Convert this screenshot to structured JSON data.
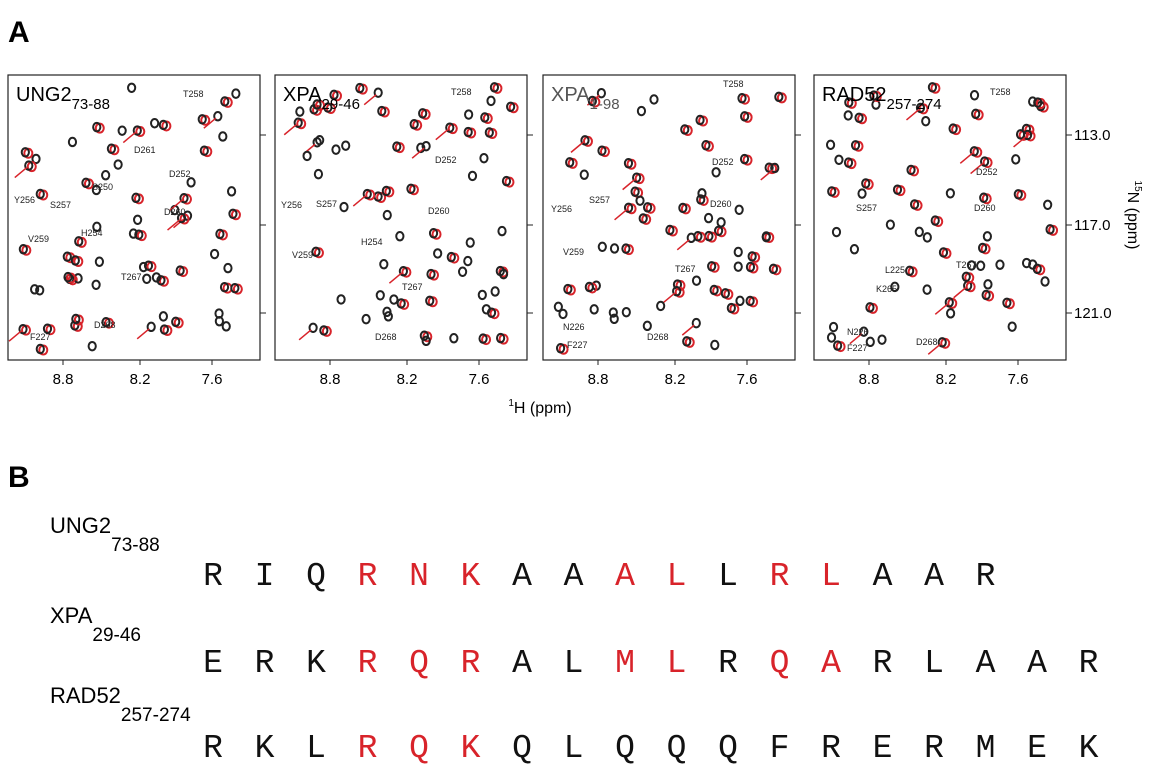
{
  "panel_a": {
    "label": "A",
    "spectra": [
      {
        "name": "UNG2",
        "subscript": "73-88",
        "residues": [
          "T258",
          "D261",
          "D252",
          "S250",
          "Y256",
          "S257",
          "D260",
          "H254",
          "V259",
          "T267",
          "D268",
          "F227"
        ]
      },
      {
        "name": "XPA",
        "subscript": "29-46",
        "residues": [
          "T258",
          "D252",
          "S257",
          "Y256",
          "D260",
          "H254",
          "V259",
          "T267",
          "D268"
        ]
      },
      {
        "name": "XPA",
        "subscript": "1-98",
        "residues": [
          "T258",
          "D252",
          "S257",
          "Y256",
          "D260",
          "V259",
          "T267",
          "N226",
          "F227",
          "D268"
        ]
      },
      {
        "name": "RAD52",
        "subscript": "257-274",
        "residues": [
          "T258",
          "D252",
          "S257",
          "D260",
          "T267",
          "L225",
          "K265",
          "N226",
          "F227",
          "D268"
        ]
      }
    ],
    "x_ticks": [
      "8.8",
      "8.2",
      "7.6"
    ],
    "x_axis": {
      "sup": "1",
      "text": "H (ppm)"
    },
    "y_ticks": [
      "113.0",
      "117.0",
      "121.0"
    ],
    "y_axis": {
      "sup": "15",
      "text": "N (ppm)"
    }
  },
  "panel_b": {
    "label": "B",
    "sequences": [
      {
        "name": "UNG2",
        "subscript": "73-88",
        "residues": [
          "R",
          "I",
          "Q",
          "R",
          "N",
          "K",
          "A",
          "A",
          "A",
          "L",
          "L",
          "R",
          "L",
          "A",
          "A",
          "R"
        ],
        "highlighted": [
          false,
          false,
          false,
          true,
          true,
          true,
          false,
          false,
          true,
          true,
          false,
          true,
          true,
          false,
          false,
          false
        ]
      },
      {
        "name": "XPA",
        "subscript": "29-46",
        "residues": [
          "E",
          "R",
          "K",
          "R",
          "Q",
          "R",
          "A",
          "L",
          "M",
          "L",
          "R",
          "Q",
          "A",
          "R",
          "L",
          "A",
          "A",
          "R"
        ],
        "highlighted": [
          false,
          false,
          false,
          true,
          true,
          true,
          false,
          false,
          true,
          true,
          false,
          true,
          true,
          false,
          false,
          false,
          false,
          false
        ]
      },
      {
        "name": "RAD52",
        "subscript": "257-274",
        "residues": [
          "R",
          "K",
          "L",
          "R",
          "Q",
          "K",
          "Q",
          "L",
          "Q",
          "Q",
          "Q",
          "F",
          "R",
          "E",
          "R",
          "M",
          "E",
          "K"
        ],
        "highlighted": [
          false,
          false,
          false,
          true,
          true,
          true,
          false,
          false,
          false,
          false,
          false,
          false,
          false,
          false,
          false,
          false,
          false,
          false
        ]
      }
    ]
  }
}
